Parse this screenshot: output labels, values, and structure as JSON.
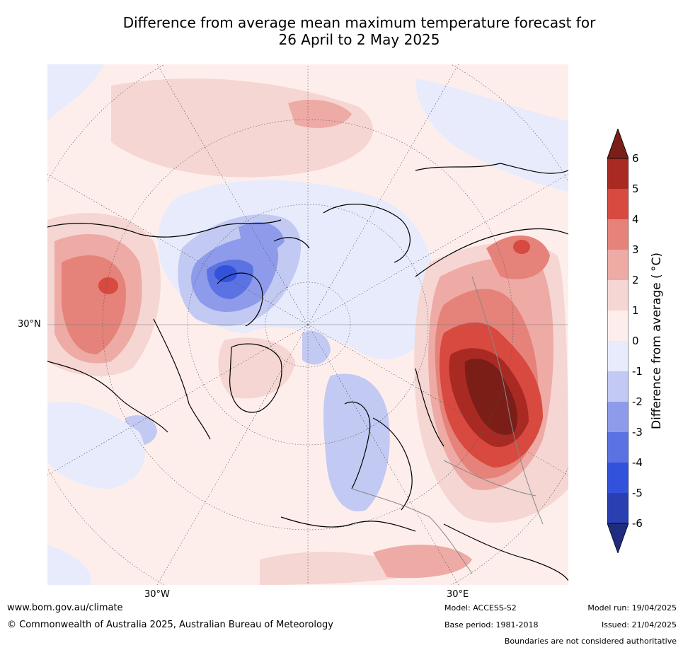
{
  "title_line1": "Difference from average mean maximum temperature forecast for",
  "title_line2": "26 April to 2 May 2025",
  "map": {
    "lat_label": "30°N",
    "lon_labels": [
      "30°W",
      "30°E"
    ]
  },
  "colorbar": {
    "title": "Difference from average ( °C)",
    "ticks": [
      "6",
      "5",
      "4",
      "3",
      "2",
      "1",
      "0",
      "-1",
      "-2",
      "-3",
      "-4",
      "-5",
      "-6"
    ],
    "colors": {
      "gt6": "#7b1e17",
      "5_6": "#a92a23",
      "4_5": "#d8493f",
      "3_4": "#e58279",
      "2_3": "#eeaaa4",
      "1_2": "#f5d6d3",
      "0_1": "#fdeeec",
      "m1_0": "#e7ebfb",
      "m2_m1": "#c2c9f2",
      "m3_m2": "#8e9bea",
      "m4_m3": "#5b72e3",
      "m5_m4": "#3352dc",
      "m6_m5": "#2a3fb0",
      "lt_m6": "#1f2c80"
    }
  },
  "footer": {
    "website": "www.bom.gov.au/climate",
    "copyright": "© Commonwealth of Australia 2025, Australian Bureau of Meteorology",
    "model": "Model: ACCESS-S2",
    "base_period": "Base period: 1981-2018",
    "model_run": "Model run: 19/04/2025",
    "issued": "Issued: 21/04/2025",
    "disclaimer": "Boundaries are not considered authoritative"
  }
}
